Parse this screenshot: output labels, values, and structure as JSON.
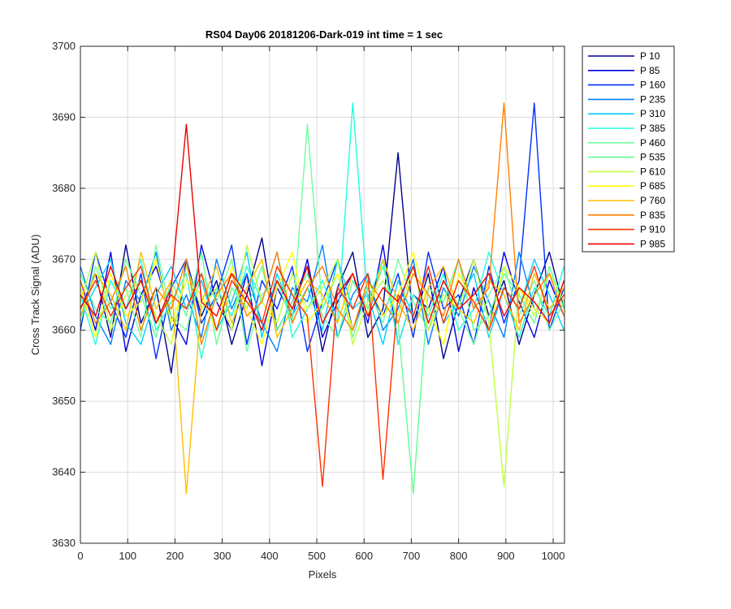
{
  "chart_data": {
    "type": "line",
    "title": "RS04 Day06 20181206-Dark-019 int time = 1 sec",
    "xlabel": "Pixels",
    "ylabel": "Cross Track Signal (ADU)",
    "xlim": [
      0,
      1024
    ],
    "ylim": [
      3630,
      3700
    ],
    "xticks": [
      0,
      100,
      200,
      300,
      400,
      500,
      600,
      700,
      800,
      900,
      1000
    ],
    "yticks": [
      3630,
      3640,
      3650,
      3660,
      3670,
      3680,
      3690,
      3700
    ],
    "grid": true,
    "legend_position": "outside-top-right",
    "x": [
      0,
      32,
      64,
      96,
      128,
      160,
      192,
      224,
      256,
      288,
      320,
      352,
      384,
      416,
      448,
      480,
      512,
      544,
      576,
      608,
      640,
      672,
      704,
      736,
      768,
      800,
      832,
      864,
      896,
      928,
      960,
      992,
      1023
    ],
    "series": [
      {
        "name": "P 10",
        "color": "#00008f",
        "values": [
          3663,
          3668,
          3659,
          3672,
          3661,
          3666,
          3654,
          3670,
          3662,
          3667,
          3658,
          3665,
          3673,
          3660,
          3664,
          3669,
          3657,
          3666,
          3671,
          3659,
          3663,
          3685,
          3661,
          3668,
          3656,
          3664,
          3670,
          3662,
          3667,
          3658,
          3665,
          3671,
          3663
        ]
      },
      {
        "name": "P 85",
        "color": "#0000df",
        "values": [
          3667,
          3660,
          3671,
          3657,
          3665,
          3669,
          3662,
          3658,
          3672,
          3664,
          3660,
          3668,
          3655,
          3666,
          3662,
          3670,
          3659,
          3664,
          3668,
          3661,
          3672,
          3658,
          3665,
          3663,
          3669,
          3657,
          3666,
          3660,
          3671,
          3664,
          3659,
          3667,
          3662
        ]
      },
      {
        "name": "P 160",
        "color": "#0030ff",
        "values": [
          3660,
          3671,
          3664,
          3659,
          3668,
          3656,
          3666,
          3670,
          3661,
          3665,
          3672,
          3658,
          3667,
          3663,
          3669,
          3657,
          3664,
          3670,
          3660,
          3666,
          3662,
          3668,
          3659,
          3671,
          3663,
          3665,
          3658,
          3669,
          3661,
          3667,
          3692,
          3660,
          3666
        ]
      },
      {
        "name": "P 235",
        "color": "#0080ff",
        "values": [
          3669,
          3662,
          3658,
          3667,
          3664,
          3671,
          3660,
          3665,
          3659,
          3670,
          3663,
          3668,
          3661,
          3657,
          3666,
          3664,
          3672,
          3659,
          3665,
          3668,
          3660,
          3663,
          3670,
          3658,
          3666,
          3662,
          3669,
          3664,
          3659,
          3671,
          3663,
          3661,
          3667
        ]
      },
      {
        "name": "P 310",
        "color": "#00cfff",
        "values": [
          3662,
          3666,
          3670,
          3661,
          3658,
          3665,
          3669,
          3663,
          3667,
          3660,
          3664,
          3671,
          3659,
          3668,
          3662,
          3666,
          3660,
          3670,
          3663,
          3665,
          3658,
          3667,
          3662,
          3669,
          3661,
          3664,
          3668,
          3659,
          3666,
          3663,
          3670,
          3665,
          3660
        ]
      },
      {
        "name": "P 385",
        "color": "#20ffdf",
        "values": [
          3665,
          3658,
          3667,
          3663,
          3670,
          3660,
          3664,
          3668,
          3656,
          3666,
          3662,
          3669,
          3664,
          3671,
          3659,
          3663,
          3667,
          3661,
          3692,
          3664,
          3670,
          3658,
          3665,
          3662,
          3668,
          3660,
          3663,
          3671,
          3665,
          3659,
          3666,
          3662,
          3669
        ]
      },
      {
        "name": "P 460",
        "color": "#70ffa0",
        "values": [
          3661,
          3669,
          3663,
          3666,
          3659,
          3672,
          3662,
          3660,
          3668,
          3664,
          3670,
          3657,
          3665,
          3667,
          3661,
          3689,
          3663,
          3668,
          3659,
          3666,
          3661,
          3670,
          3664,
          3660,
          3667,
          3663,
          3658,
          3665,
          3669,
          3662,
          3667,
          3660,
          3664
        ]
      },
      {
        "name": "P 535",
        "color": "#60ff90",
        "values": [
          3668,
          3663,
          3661,
          3670,
          3665,
          3659,
          3667,
          3662,
          3671,
          3658,
          3666,
          3663,
          3669,
          3660,
          3664,
          3668,
          3662,
          3659,
          3667,
          3663,
          3669,
          3661,
          3637,
          3666,
          3664,
          3670,
          3660,
          3662,
          3668,
          3665,
          3661,
          3669,
          3663
        ]
      },
      {
        "name": "P 610",
        "color": "#c0ff40",
        "values": [
          3664,
          3671,
          3660,
          3665,
          3667,
          3662,
          3658,
          3669,
          3663,
          3666,
          3660,
          3672,
          3664,
          3661,
          3668,
          3663,
          3666,
          3670,
          3658,
          3664,
          3667,
          3662,
          3669,
          3660,
          3665,
          3663,
          3670,
          3661,
          3638,
          3666,
          3662,
          3668,
          3664
        ]
      },
      {
        "name": "P 685",
        "color": "#ffff00",
        "values": [
          3666,
          3659,
          3668,
          3662,
          3664,
          3670,
          3661,
          3667,
          3665,
          3660,
          3669,
          3663,
          3658,
          3666,
          3671,
          3661,
          3664,
          3668,
          3660,
          3667,
          3662,
          3665,
          3671,
          3663,
          3658,
          3668,
          3664,
          3660,
          3669,
          3666,
          3663,
          3661,
          3667
        ]
      },
      {
        "name": "P 760",
        "color": "#ffbf00",
        "values": [
          3662,
          3668,
          3665,
          3660,
          3671,
          3663,
          3667,
          3637,
          3664,
          3669,
          3661,
          3666,
          3670,
          3659,
          3663,
          3667,
          3665,
          3661,
          3668,
          3662,
          3670,
          3664,
          3660,
          3666,
          3669,
          3663,
          3661,
          3667,
          3665,
          3660,
          3668,
          3663,
          3666
        ]
      },
      {
        "name": "P 835",
        "color": "#ff8000",
        "values": [
          3667,
          3661,
          3664,
          3669,
          3660,
          3666,
          3663,
          3670,
          3658,
          3665,
          3668,
          3662,
          3664,
          3671,
          3661,
          3666,
          3669,
          3663,
          3660,
          3667,
          3664,
          3661,
          3668,
          3665,
          3662,
          3670,
          3663,
          3666,
          3692,
          3661,
          3665,
          3668,
          3662
        ]
      },
      {
        "name": "P 910",
        "color": "#ff3000",
        "values": [
          3663,
          3667,
          3662,
          3666,
          3669,
          3661,
          3665,
          3663,
          3668,
          3660,
          3667,
          3664,
          3661,
          3669,
          3665,
          3662,
          3638,
          3666,
          3663,
          3668,
          3639,
          3665,
          3662,
          3669,
          3661,
          3667,
          3664,
          3660,
          3666,
          3663,
          3669,
          3662,
          3665
        ]
      },
      {
        "name": "P 985",
        "color": "#ef0000",
        "values": [
          3665,
          3662,
          3669,
          3663,
          3667,
          3661,
          3666,
          3689,
          3664,
          3662,
          3668,
          3665,
          3660,
          3667,
          3663,
          3669,
          3661,
          3665,
          3668,
          3662,
          3666,
          3664,
          3669,
          3661,
          3667,
          3663,
          3665,
          3668,
          3662,
          3666,
          3664,
          3661,
          3667
        ]
      }
    ]
  }
}
